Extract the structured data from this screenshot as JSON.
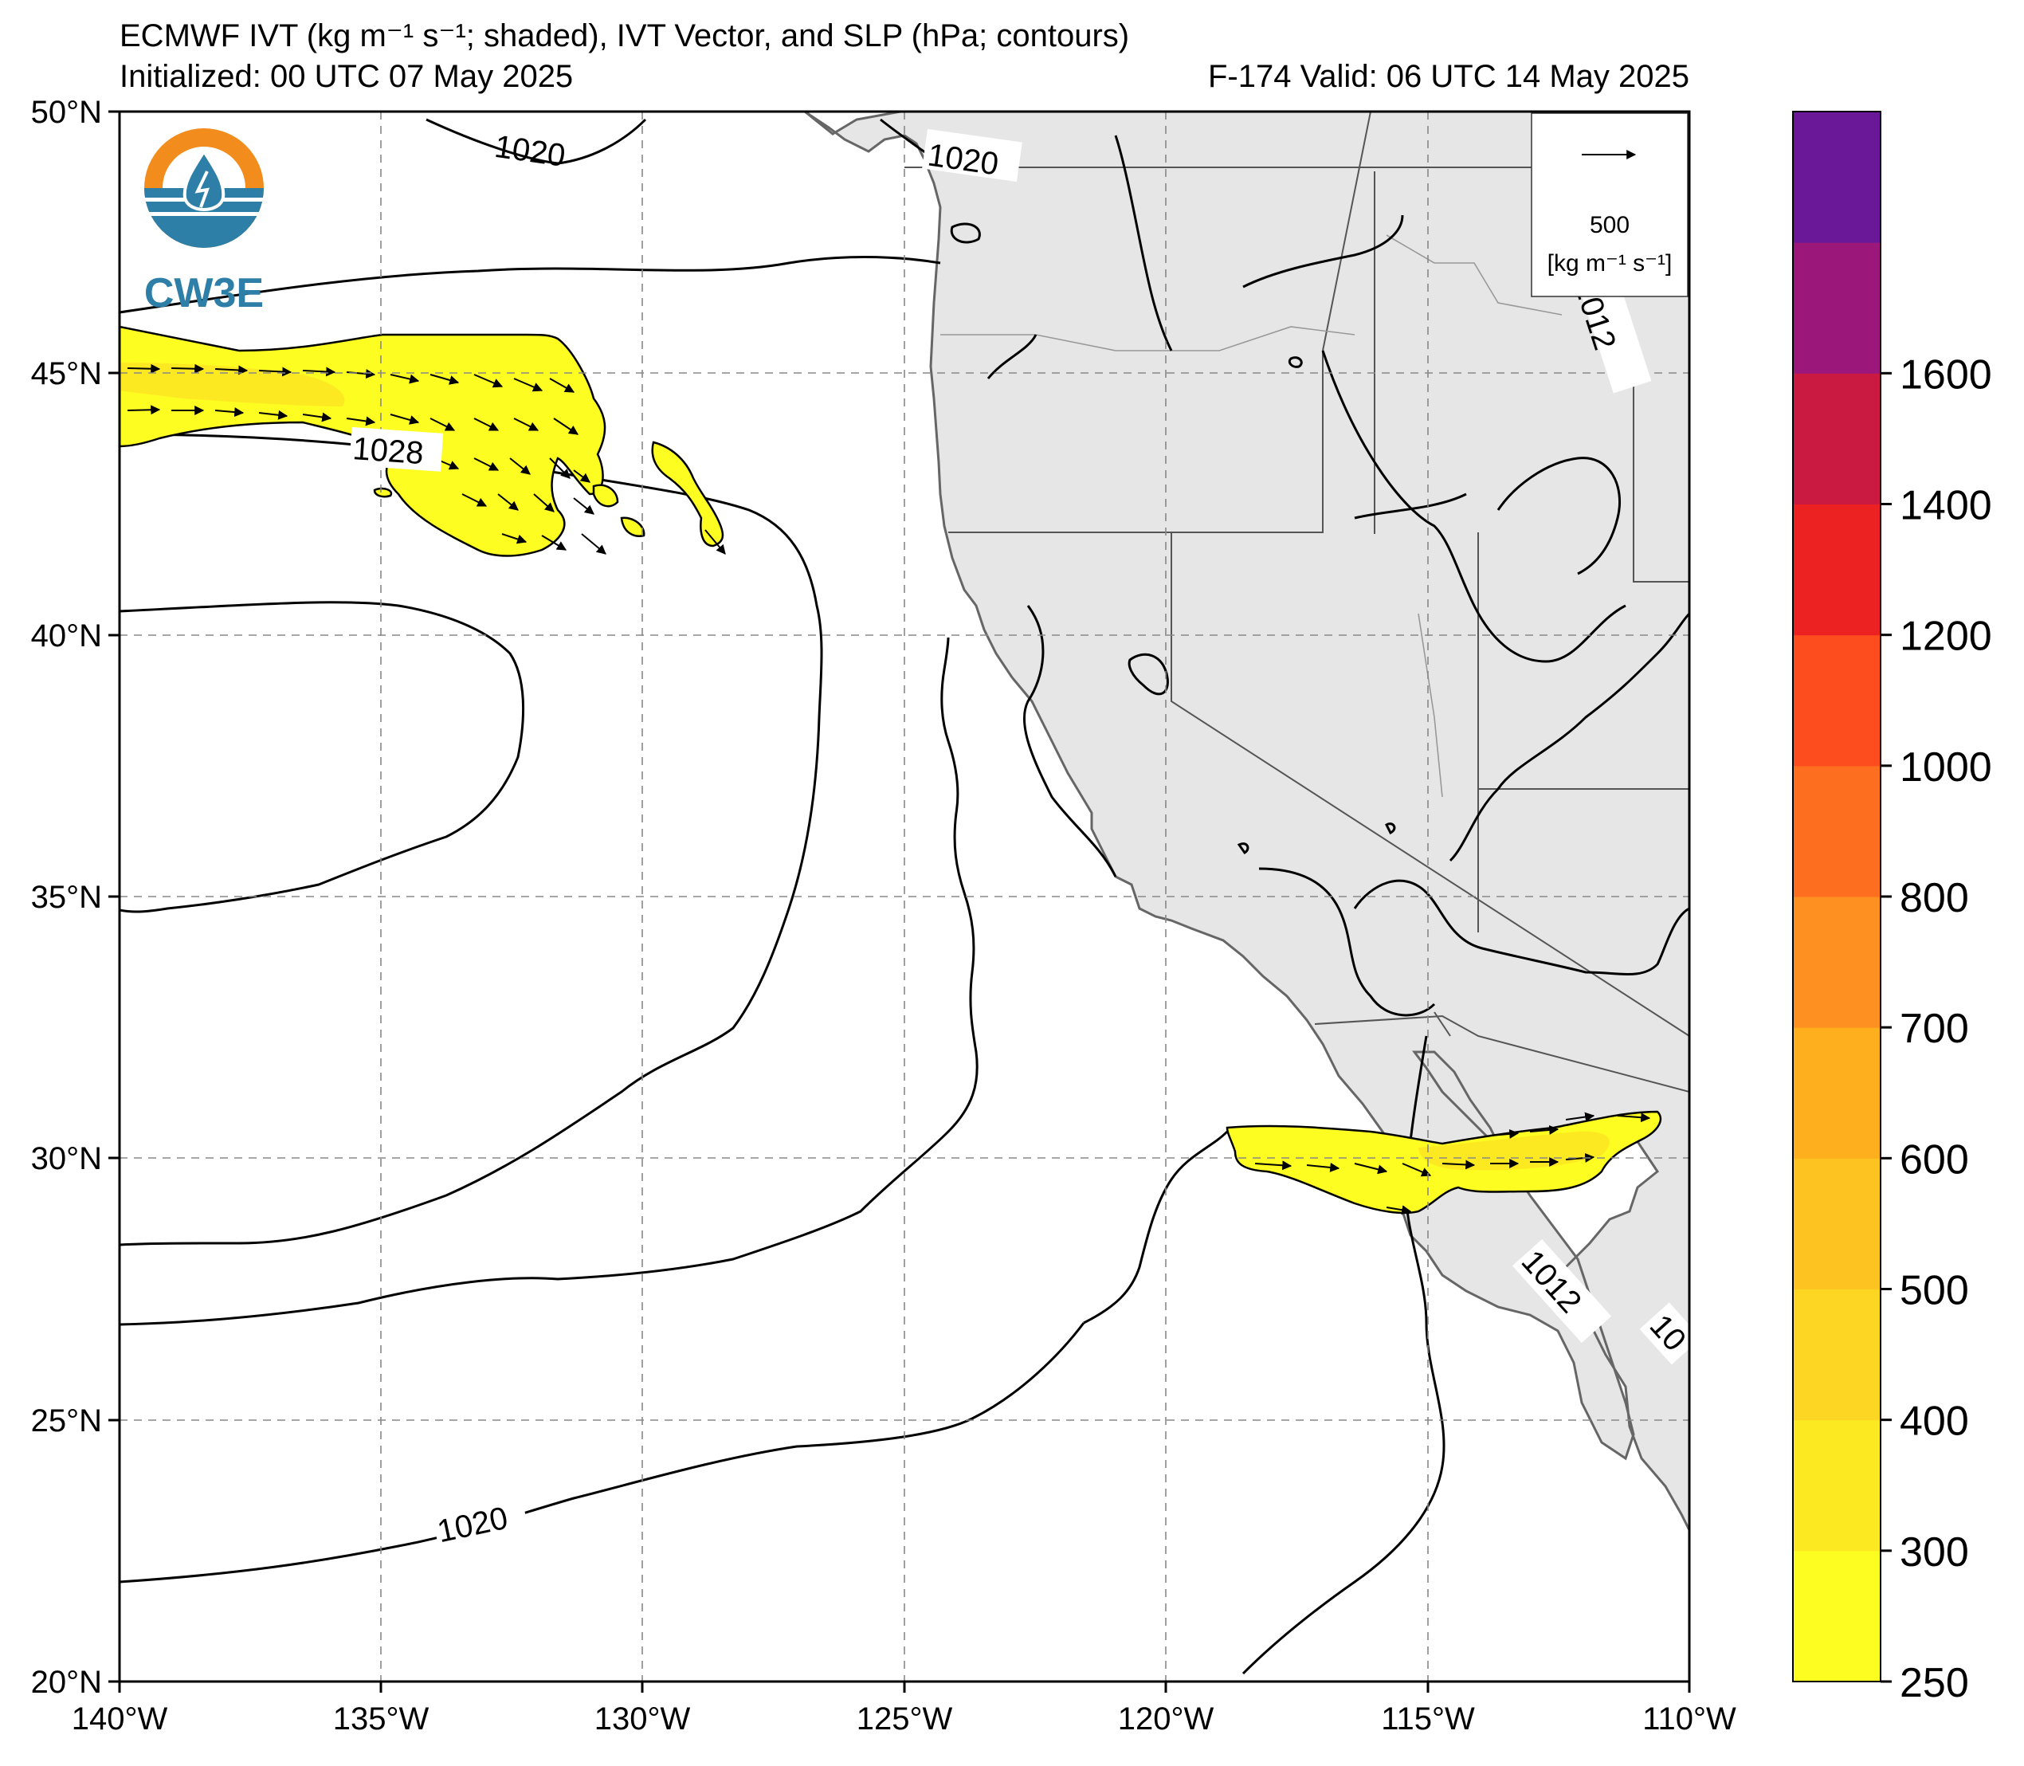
{
  "header": {
    "title": "ECMWF IVT (kg m⁻¹ s⁻¹; shaded), IVT Vector, and SLP (hPa; contours)",
    "initialized": "Initialized: 00 UTC 07 May 2025",
    "valid": "F-174  Valid: 06 UTC 14 May 2025"
  },
  "logo": {
    "text": "CW3E",
    "colors": {
      "ring": "#f28c1c",
      "water": "#2e7fa8"
    }
  },
  "axes": {
    "lon_labels": [
      "140°W",
      "135°W",
      "130°W",
      "125°W",
      "120°W",
      "115°W",
      "110°W"
    ],
    "lat_labels": [
      "50°N",
      "45°N",
      "40°N",
      "35°N",
      "30°N",
      "25°N",
      "20°N"
    ]
  },
  "reference_vector": {
    "value": "500",
    "unit": "[kg m⁻¹ s⁻¹]"
  },
  "contour_labels": [
    "1020",
    "1020",
    "1028",
    "1020",
    "1012",
    "1012",
    "10"
  ],
  "colorbar": {
    "labels": [
      "250",
      "300",
      "400",
      "500",
      "600",
      "700",
      "800",
      "1000",
      "1200",
      "1400",
      "1600"
    ],
    "colors": [
      "#fdfd22",
      "#fde922",
      "#fdd623",
      "#fdc320",
      "#fdaf1d",
      "#fd9020",
      "#fd6e1f",
      "#fd4c1e",
      "#ec2121",
      "#cb1a42",
      "#9c177a",
      "#6a1898"
    ]
  },
  "colors": {
    "land": "#e6e6e6",
    "ocean": "#ffffff",
    "coast": "#666666",
    "ivt_low": "#fdfd22",
    "ivt_mid": "#fde922"
  }
}
